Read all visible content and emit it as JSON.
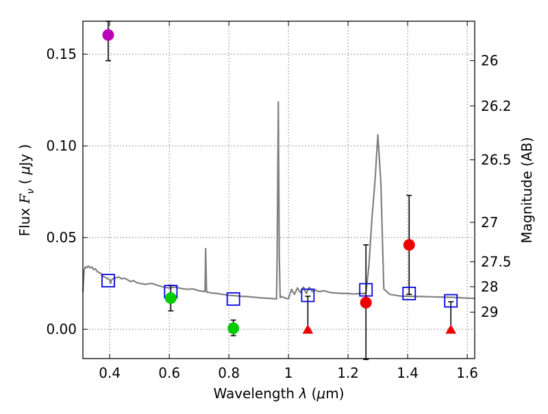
{
  "chart_data": {
    "type": "scatter",
    "title": "",
    "xlabel": "Wavelength  λ (μm)",
    "xlabel_parts": {
      "prefix": "Wavelength  ",
      "symbol": "λ",
      "open": " (",
      "unit_symbol": "μ",
      "unit": "m)"
    },
    "ylabel": "Flux  Fν  ( μJy )",
    "ylabel_parts": {
      "prefix": "Flux  ",
      "symbol": "F",
      "sub": "ν",
      "open": "  ( ",
      "unit_symbol": "μ",
      "unit": "Jy )"
    },
    "y2label": "Magnitude (AB)",
    "xlim": [
      0.31,
      1.625
    ],
    "ylim": [
      -0.016,
      0.168
    ],
    "grid": true,
    "x_ticks": [
      {
        "value": 0.4,
        "label": "0.4"
      },
      {
        "value": 0.6,
        "label": "0.6"
      },
      {
        "value": 0.8,
        "label": "0.8"
      },
      {
        "value": 1.0,
        "label": "1"
      },
      {
        "value": 1.2,
        "label": "1.2"
      },
      {
        "value": 1.4,
        "label": "1.4"
      },
      {
        "value": 1.6,
        "label": "1.6"
      }
    ],
    "y_ticks": [
      {
        "value": 0.0,
        "label": "0.00"
      },
      {
        "value": 0.05,
        "label": "0.05"
      },
      {
        "value": 0.1,
        "label": "0.10"
      },
      {
        "value": 0.15,
        "label": "0.15"
      }
    ],
    "y2_ticks": [
      {
        "flux": 0.1465,
        "label": "26"
      },
      {
        "flux": 0.1218,
        "label": "26.2"
      },
      {
        "flux": 0.0924,
        "label": "26.5"
      },
      {
        "flux": 0.0583,
        "label": "27"
      },
      {
        "flux": 0.0368,
        "label": "27.5"
      },
      {
        "flux": 0.0232,
        "label": "28"
      },
      {
        "flux": 0.0093,
        "label": "29"
      }
    ],
    "model_sed": {
      "color": "#808080",
      "x": [
        0.31,
        0.314,
        0.318,
        0.322,
        0.328,
        0.334,
        0.34,
        0.346,
        0.352,
        0.358,
        0.364,
        0.37,
        0.376,
        0.382,
        0.388,
        0.394,
        0.4,
        0.403,
        0.406,
        0.41,
        0.42,
        0.43,
        0.44,
        0.45,
        0.46,
        0.47,
        0.48,
        0.49,
        0.5,
        0.52,
        0.54,
        0.56,
        0.58,
        0.6,
        0.62,
        0.64,
        0.66,
        0.68,
        0.7,
        0.72,
        0.722,
        0.725,
        0.728,
        0.731,
        0.74,
        0.76,
        0.78,
        0.8,
        0.82,
        0.84,
        0.86,
        0.88,
        0.9,
        0.92,
        0.94,
        0.96,
        0.962,
        0.966,
        0.969,
        0.972,
        0.975,
        0.98,
        1.0,
        1.01,
        1.02,
        1.03,
        1.04,
        1.05,
        1.06,
        1.07,
        1.08,
        1.09,
        1.1,
        1.12,
        1.14,
        1.16,
        1.18,
        1.2,
        1.22,
        1.24,
        1.26,
        1.27,
        1.28,
        1.29,
        1.3,
        1.31,
        1.32,
        1.34,
        1.36,
        1.38,
        1.4,
        1.45,
        1.5,
        1.55,
        1.6,
        1.625
      ],
      "y": [
        0.02,
        0.032,
        0.034,
        0.0335,
        0.0345,
        0.0335,
        0.034,
        0.0325,
        0.033,
        0.0315,
        0.031,
        0.0305,
        0.029,
        0.0285,
        0.028,
        0.0275,
        0.027,
        0.025,
        0.027,
        0.0275,
        0.028,
        0.0285,
        0.0275,
        0.0278,
        0.027,
        0.026,
        0.0265,
        0.0255,
        0.025,
        0.0245,
        0.025,
        0.024,
        0.023,
        0.0225,
        0.023,
        0.0222,
        0.0218,
        0.022,
        0.021,
        0.0205,
        0.044,
        0.021,
        0.02,
        0.0202,
        0.0198,
        0.0195,
        0.019,
        0.0185,
        0.0183,
        0.018,
        0.0178,
        0.0175,
        0.0172,
        0.017,
        0.0168,
        0.0165,
        0.04,
        0.124,
        0.04,
        0.0172,
        0.018,
        0.0175,
        0.0165,
        0.0218,
        0.019,
        0.0225,
        0.02,
        0.023,
        0.0195,
        0.0228,
        0.0205,
        0.0215,
        0.0205,
        0.021,
        0.02,
        0.0198,
        0.0195,
        0.0195,
        0.0192,
        0.0195,
        0.0195,
        0.035,
        0.06,
        0.08,
        0.106,
        0.08,
        0.022,
        0.019,
        0.0185,
        0.018,
        0.018,
        0.0178,
        0.0176,
        0.0174,
        0.017,
        0.0168
      ]
    },
    "model_points": {
      "color": "#0000dd",
      "x": [
        0.395,
        0.605,
        0.815,
        1.065,
        1.26,
        1.405,
        1.545
      ],
      "y": [
        0.0265,
        0.0205,
        0.0165,
        0.0185,
        0.0215,
        0.0195,
        0.0155
      ]
    },
    "observed_points": [
      {
        "x": 0.395,
        "y": 0.1605,
        "yerr_low": 0.014,
        "yerr_high": 0.0075,
        "color": "#bb00bb"
      },
      {
        "x": 0.605,
        "y": 0.017,
        "yerr_low": 0.007,
        "yerr_high": 0.007,
        "color": "#00cc00"
      },
      {
        "x": 0.815,
        "y": 0.0005,
        "yerr_low": 0.004,
        "yerr_high": 0.0045,
        "color": "#00cc00"
      },
      {
        "x": 1.26,
        "y": 0.0145,
        "yerr_low": 0.031,
        "yerr_high": 0.0315,
        "color": "#ee0000"
      },
      {
        "x": 1.405,
        "y": 0.046,
        "yerr_low": 0.027,
        "yerr_high": 0.027,
        "color": "#ee0000"
      }
    ],
    "upper_limits": [
      {
        "x": 1.065,
        "y": 0.0,
        "err_top": 0.018,
        "color": "#ee0000"
      },
      {
        "x": 1.545,
        "y": 0.0,
        "err_top": 0.015,
        "color": "#ee0000"
      }
    ]
  }
}
